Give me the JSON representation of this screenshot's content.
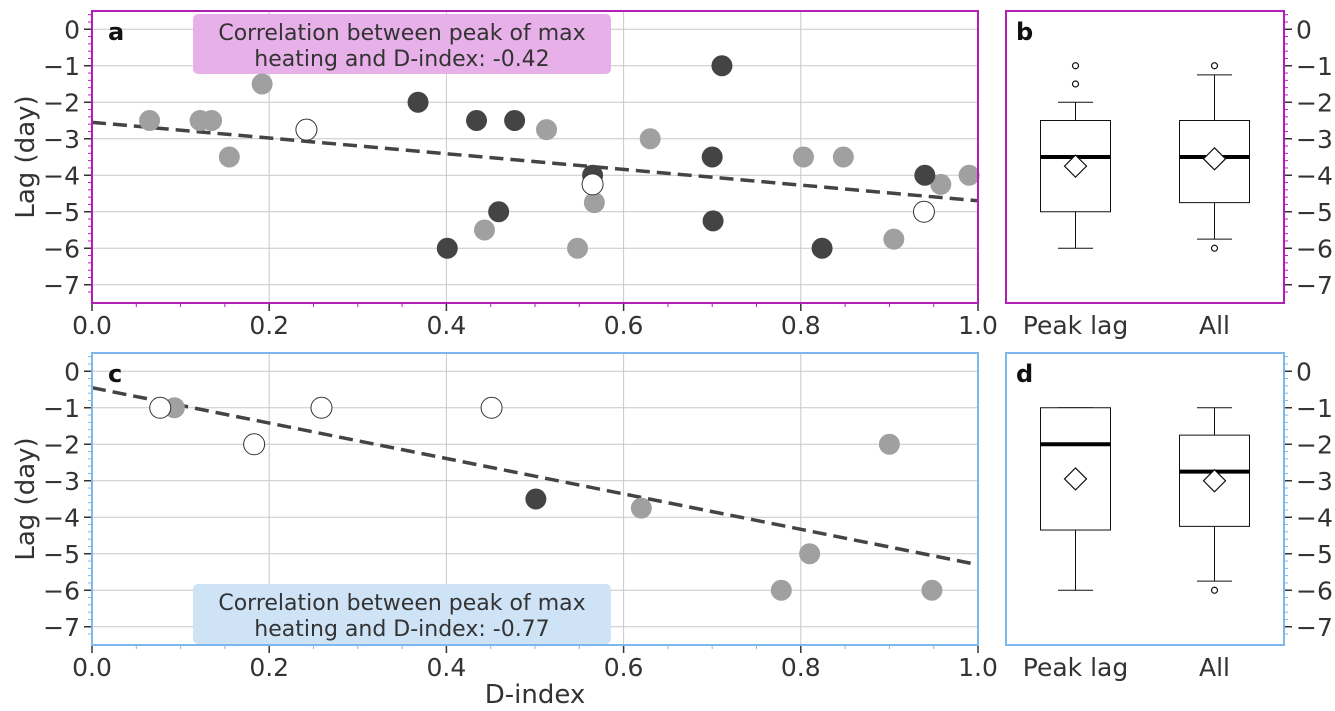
{
  "chart_data": [
    {
      "panel": "a",
      "type": "scatter",
      "xlabel": "",
      "ylabel": "Lag (day)",
      "xlim": [
        0.0,
        1.0
      ],
      "ylim": [
        -7.5,
        0.5
      ],
      "xticks": [
        "0.0",
        "0.2",
        "0.4",
        "0.6",
        "0.8",
        "1.0"
      ],
      "yticks": [
        "0",
        "−1",
        "−2",
        "−3",
        "−4",
        "−5",
        "−6",
        "−7"
      ],
      "grid": true,
      "frame_color": "#b21fb5",
      "annotation": {
        "text_line1": "Correlation between peak of max",
        "text_line2": "heating and D-index: -0.42",
        "bg": "#e8b0e8",
        "position": "top"
      },
      "trend_line": {
        "x": [
          0.0,
          1.0
        ],
        "y": [
          -2.55,
          -4.7
        ],
        "color": "#444444"
      },
      "series": [
        {
          "style": "light",
          "color": "#a0a0a0",
          "points": [
            [
              0.065,
              -2.5
            ],
            [
              0.122,
              -2.5
            ],
            [
              0.135,
              -2.5
            ],
            [
              0.155,
              -3.5
            ],
            [
              0.192,
              -1.5
            ],
            [
              0.443,
              -5.5
            ],
            [
              0.513,
              -2.75
            ],
            [
              0.548,
              -6.0
            ],
            [
              0.567,
              -4.75
            ],
            [
              0.63,
              -3.0
            ],
            [
              0.803,
              -3.5
            ],
            [
              0.848,
              -3.5
            ],
            [
              0.905,
              -5.75
            ],
            [
              0.958,
              -4.25
            ],
            [
              0.99,
              -4.0
            ]
          ]
        },
        {
          "style": "dark",
          "color": "#444444",
          "points": [
            [
              0.368,
              -2.0
            ],
            [
              0.401,
              -6.0
            ],
            [
              0.434,
              -2.5
            ],
            [
              0.459,
              -5.0
            ],
            [
              0.477,
              -2.5
            ],
            [
              0.565,
              -4.0
            ],
            [
              0.7,
              -3.5
            ],
            [
              0.701,
              -5.25
            ],
            [
              0.711,
              -1.0
            ],
            [
              0.824,
              -6.0
            ],
            [
              0.94,
              -4.0
            ]
          ]
        },
        {
          "style": "open",
          "color": "#ffffff",
          "points": [
            [
              0.242,
              -2.75
            ],
            [
              0.565,
              -4.25
            ],
            [
              0.939,
              -5.0
            ]
          ]
        }
      ]
    },
    {
      "panel": "b",
      "type": "box",
      "categories": [
        "Peak lag",
        "All"
      ],
      "ylim": [
        -7.5,
        0.5
      ],
      "yticks": [
        "0",
        "−1",
        "−2",
        "−3",
        "−4",
        "−5",
        "−6",
        "−7"
      ],
      "frame_color": "#b21fb5",
      "boxes": [
        {
          "q1": -5.0,
          "median": -3.5,
          "q3": -2.5,
          "whisker_low": -6.0,
          "whisker_high": -2.0,
          "mean": -3.75,
          "fliers": [
            -1.0,
            -1.5
          ]
        },
        {
          "q1": -4.75,
          "median": -3.5,
          "q3": -2.5,
          "whisker_low": -5.75,
          "whisker_high": -1.25,
          "mean": -3.55,
          "fliers": [
            -1.0,
            -6.0
          ]
        }
      ]
    },
    {
      "panel": "c",
      "type": "scatter",
      "xlabel": "D-index",
      "ylabel": "Lag (day)",
      "xlim": [
        0.0,
        1.0
      ],
      "ylim": [
        -7.5,
        0.5
      ],
      "xticks": [
        "0.0",
        "0.2",
        "0.4",
        "0.6",
        "0.8",
        "1.0"
      ],
      "yticks": [
        "0",
        "−1",
        "−2",
        "−3",
        "−4",
        "−5",
        "−6",
        "−7"
      ],
      "grid": true,
      "frame_color": "#7db8ec",
      "annotation": {
        "text_line1": "Correlation between peak of max",
        "text_line2": "heating and D-index: -0.77",
        "bg": "#cfe3f7",
        "position": "bottom"
      },
      "trend_line": {
        "x": [
          0.0,
          1.0
        ],
        "y": [
          -0.45,
          -5.3
        ],
        "color": "#444444"
      },
      "series": [
        {
          "style": "light",
          "color": "#a0a0a0",
          "points": [
            [
              0.093,
              -1.0
            ],
            [
              0.62,
              -3.75
            ],
            [
              0.778,
              -6.0
            ],
            [
              0.81,
              -5.0
            ],
            [
              0.9,
              -2.0
            ],
            [
              0.948,
              -6.0
            ]
          ]
        },
        {
          "style": "dark",
          "color": "#444444",
          "points": [
            [
              0.501,
              -3.5
            ]
          ]
        },
        {
          "style": "open",
          "color": "#ffffff",
          "points": [
            [
              0.077,
              -1.0
            ],
            [
              0.183,
              -2.0
            ],
            [
              0.259,
              -1.0
            ],
            [
              0.451,
              -1.0
            ]
          ]
        }
      ]
    },
    {
      "panel": "d",
      "type": "box",
      "categories": [
        "Peak lag",
        "All"
      ],
      "ylim": [
        -7.5,
        0.5
      ],
      "yticks": [
        "0",
        "−1",
        "−2",
        "−3",
        "−4",
        "−5",
        "−6",
        "−7"
      ],
      "frame_color": "#7db8ec",
      "boxes": [
        {
          "q1": -4.35,
          "median": -2.0,
          "q3": -1.0,
          "whisker_low": -6.0,
          "whisker_high": -1.0,
          "mean": -2.95,
          "fliers": []
        },
        {
          "q1": -4.25,
          "median": -2.75,
          "q3": -1.75,
          "whisker_low": -5.75,
          "whisker_high": -1.0,
          "mean": -3.0,
          "fliers": [
            -6.0
          ]
        }
      ]
    }
  ]
}
